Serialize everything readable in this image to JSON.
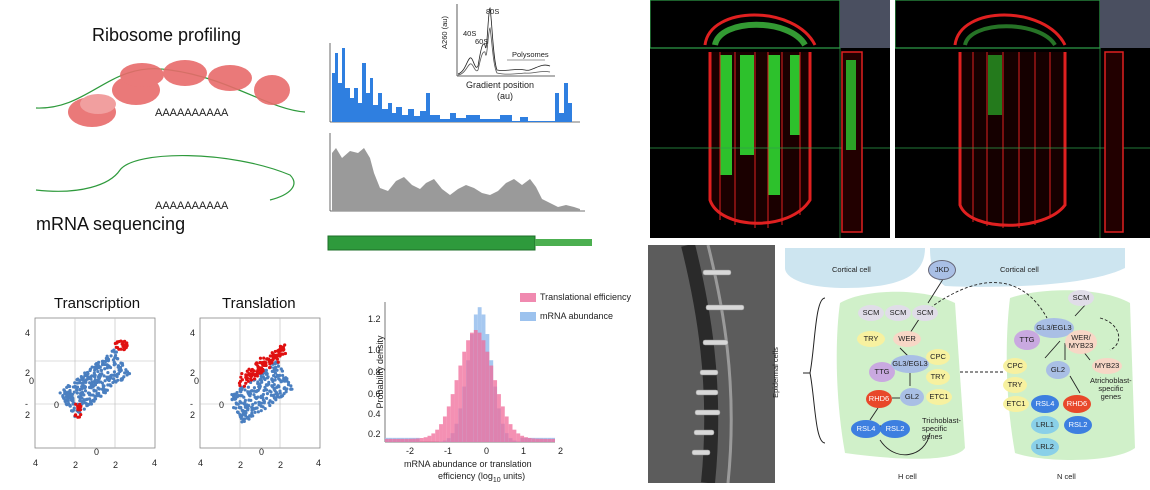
{
  "ribosome_panel": {
    "title": "Ribosome profiling",
    "mrna_label": "mRNA sequencing",
    "polya_1": "AAAAAAAAAA",
    "polya_2": "AAAAAAAAAA"
  },
  "polysome_inset": {
    "ylabel": "A260 (au)",
    "xlabel_1": "Gradient position",
    "xlabel_2": "(au)",
    "peak_40s": "40S",
    "peak_60s": "60S",
    "peak_80s": "80S",
    "polysomes": "Polysomes"
  },
  "scatter_panels": {
    "transcription_title": "Transcription",
    "translation_title": "Translation",
    "t_ticks_y": [
      "4",
      "2",
      "0",
      "-",
      "2",
      "0"
    ],
    "t_ticks_x": [
      "4",
      "2",
      "0",
      "2",
      "4"
    ],
    "tl_ticks_y": [
      "4",
      "2",
      "0",
      "-",
      "2",
      "0"
    ],
    "tl_ticks_x": [
      "4",
      "2",
      "0",
      "2",
      "4"
    ]
  },
  "histogram": {
    "ylabel": "Probability density",
    "xlabel_1": "mRNA abundance or translation",
    "xlabel_2": "efficiency (log",
    "xlabel_sub": "10",
    "xlabel_3": " units)",
    "legend_te": "Translational efficiency",
    "legend_mrna": "mRNA abundance",
    "y_ticks": [
      "1.2",
      "1.0",
      "0.8",
      "0.6",
      "0.4",
      "0.2"
    ],
    "x_ticks": [
      "-2",
      "-1",
      "0",
      "1",
      "2"
    ],
    "color_te": "#f06b9a",
    "color_mrna": "#7fb0ea"
  },
  "network": {
    "cortical_left": "Cortical cell",
    "cortical_right": "Cortical cell",
    "epidermal": "Epidermal cells",
    "h_cell": "H cell",
    "n_cell": "N cell",
    "jkd": "JKD",
    "h_nodes": {
      "scm1": "SCM",
      "scm2": "SCM",
      "scm3": "SCM",
      "try": "TRY",
      "wer": "WER",
      "ttg": "TTG",
      "gl3": "GL3/EGL3",
      "cpc": "CPC",
      "try2": "TRY",
      "etc1": "ETC1",
      "rhd6": "RHD6",
      "gl2": "GL2",
      "rsl4": "RSL4",
      "rsl2": "RSL2",
      "tricho": "Trichoblast-\nspecific\ngenes"
    },
    "n_nodes": {
      "scm": "SCM",
      "ttg": "TTG",
      "gl3": "GL3/EGL3",
      "wer": "WER/\nMYB23",
      "cpc": "CPC",
      "try": "TRY",
      "etc1": "ETC1",
      "gl2": "GL2",
      "myb23": "MYB23",
      "atricho": "Atrichoblast-\nspecific\ngenes",
      "rsl4": "RSL4",
      "rhd6": "RHD6",
      "lrl1": "LRL1",
      "rsl2": "RSL2",
      "lrl2": "LRL2"
    }
  }
}
